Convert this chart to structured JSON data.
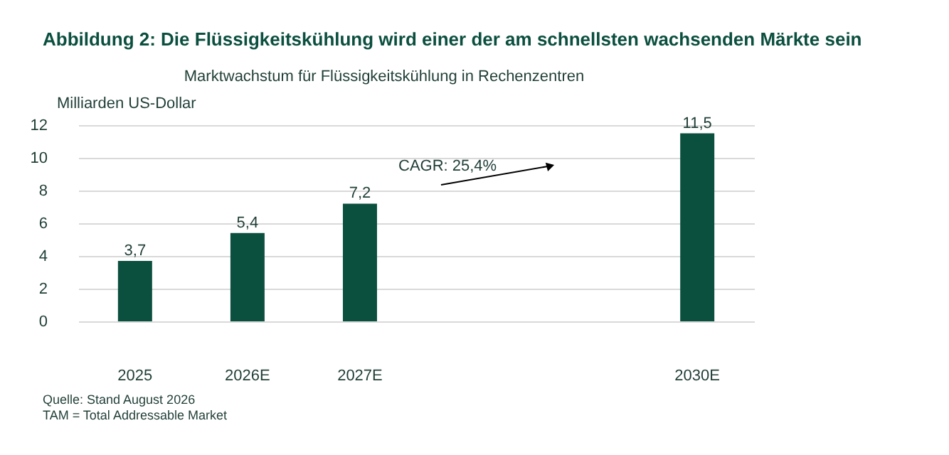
{
  "chart_data": {
    "type": "bar",
    "title": "Abbildung 2: Die Flüssigkeitskühlung wird einer der am schnellsten wachsenden Märkte sein",
    "subtitle": "Marktwachstum für Flüssigkeitskühlung in Rechenzentren",
    "ylabel": "Milliarden US-Dollar",
    "categories": [
      "2025",
      "2026E",
      "2027E",
      null,
      null,
      "2030E"
    ],
    "values": [
      3.7,
      5.4,
      7.2,
      null,
      null,
      11.5
    ],
    "value_labels": [
      "3,7",
      "5,4",
      "7,2",
      null,
      null,
      "11,5"
    ],
    "color": "#0b4f3e",
    "ylim": [
      0,
      12
    ],
    "yticks": [
      0,
      2,
      4,
      6,
      8,
      10,
      12
    ],
    "grid": "y",
    "annotations": [
      "CAGR: 25,4%",
      "Quelle: Stand August 2026",
      "TAM = Total Addressable Market"
    ]
  }
}
